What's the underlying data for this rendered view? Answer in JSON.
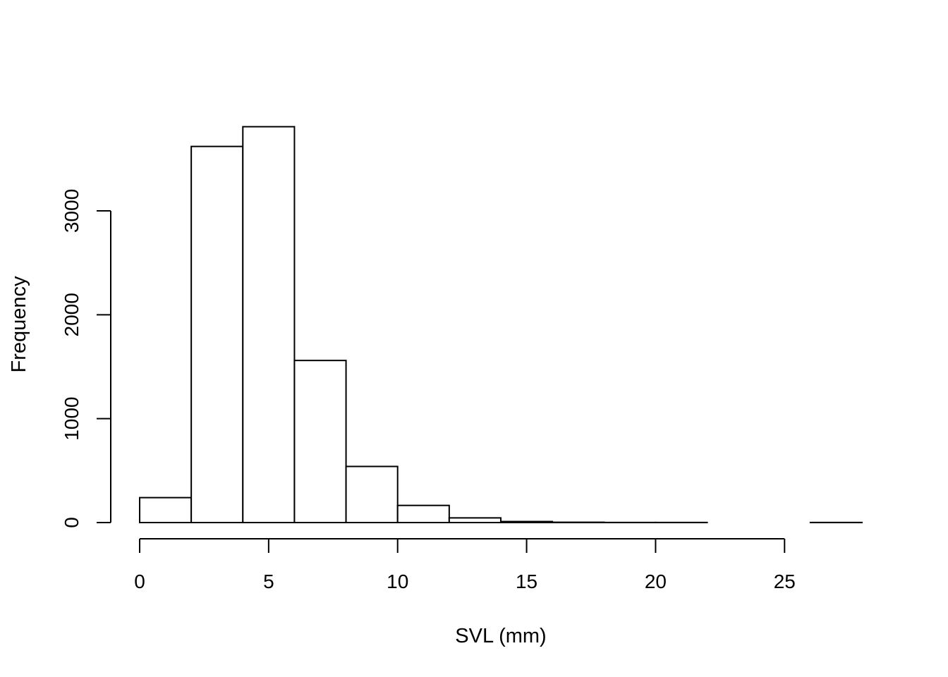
{
  "chart_data": {
    "type": "bar",
    "title": "",
    "xlabel": "SVL (mm)",
    "ylabel": "Frequency",
    "bins": [
      {
        "x0": 0,
        "x1": 2,
        "count": 240
      },
      {
        "x0": 2,
        "x1": 4,
        "count": 3620
      },
      {
        "x0": 4,
        "x1": 6,
        "count": 3810
      },
      {
        "x0": 6,
        "x1": 8,
        "count": 1560
      },
      {
        "x0": 8,
        "x1": 10,
        "count": 540
      },
      {
        "x0": 10,
        "x1": 12,
        "count": 165
      },
      {
        "x0": 12,
        "x1": 14,
        "count": 45
      },
      {
        "x0": 14,
        "x1": 16,
        "count": 10
      },
      {
        "x0": 16,
        "x1": 18,
        "count": 3
      },
      {
        "x0": 18,
        "x1": 20,
        "count": 1
      },
      {
        "x0": 20,
        "x1": 22,
        "count": 1
      },
      {
        "x0": 22,
        "x1": 24,
        "count": 0
      },
      {
        "x0": 24,
        "x1": 26,
        "count": 0
      },
      {
        "x0": 26,
        "x1": 28,
        "count": 1
      }
    ],
    "xlim": [
      0,
      28
    ],
    "ylim": [
      0,
      3810
    ],
    "x_ticks": [
      0,
      5,
      10,
      15,
      20,
      25
    ],
    "y_ticks": [
      0,
      1000,
      2000,
      3000
    ],
    "grid": false,
    "legend": "none"
  }
}
